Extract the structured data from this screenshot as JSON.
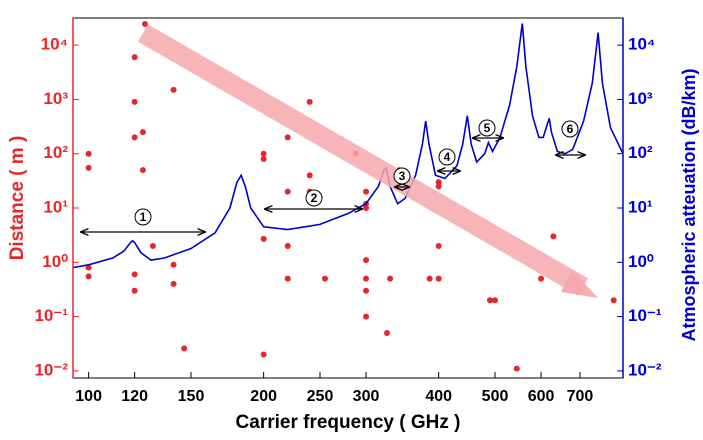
{
  "chart_data": {
    "type": "scatter",
    "xlabel": "Carrier frequency ( GHz )",
    "ylabel": "Distance ( m )",
    "y2label": "Atmospheric atteuation (dB/km)",
    "xscale": "log",
    "yscale": "log",
    "y2scale": "log",
    "xlim": [
      94,
      830
    ],
    "ylim": [
      0.0074,
      31600
    ],
    "y2lim": [
      0.0074,
      31600
    ],
    "xticks": [
      100,
      120,
      150,
      200,
      250,
      300,
      400,
      500,
      600,
      700
    ],
    "yticks": [
      {
        "value": 0.01,
        "label": "10⁻²"
      },
      {
        "value": 0.1,
        "label": "10⁻¹"
      },
      {
        "value": 1,
        "label": "10⁰"
      },
      {
        "value": 10,
        "label": "10¹"
      },
      {
        "value": 100,
        "label": "10²"
      },
      {
        "value": 1000,
        "label": "10³"
      },
      {
        "value": 10000,
        "label": "10⁴"
      }
    ],
    "y2ticks": [
      {
        "value": 0.01,
        "label": "10⁻²"
      },
      {
        "value": 0.1,
        "label": "10⁻¹"
      },
      {
        "value": 1,
        "label": "10⁰"
      },
      {
        "value": 10,
        "label": "10¹"
      },
      {
        "value": 100,
        "label": "10²"
      },
      {
        "value": 1000,
        "label": "10³"
      },
      {
        "value": 10000,
        "label": "10⁴"
      }
    ],
    "ycolor": "#e8262a",
    "y2color": "#0000cc",
    "annotations": [
      "1",
      "2",
      "3",
      "4",
      "5",
      "6"
    ],
    "series": [
      {
        "type": "scatter",
        "color": "#e8262a",
        "x": [
          100,
          100,
          100,
          100,
          120,
          120,
          120,
          120,
          120,
          124,
          124,
          129,
          125,
          140,
          140,
          140,
          146,
          200,
          200,
          200,
          200,
          220,
          220,
          220,
          220,
          240,
          240,
          240,
          255,
          288,
          300,
          300,
          300,
          300,
          300,
          300,
          300,
          326,
          330,
          342,
          386,
          400,
          400,
          400,
          400,
          490,
          500,
          545,
          600,
          630,
          800
        ],
        "values": [
          100,
          55,
          0.8,
          0.55,
          6000,
          900,
          200,
          0.6,
          0.3,
          250,
          50,
          2,
          24500,
          1500,
          0.9,
          0.4,
          0.026,
          100,
          80,
          2.7,
          0.02,
          200,
          20,
          2,
          0.5,
          900,
          40,
          20,
          0.5,
          100,
          20,
          12,
          10,
          1.1,
          0.5,
          0.3,
          0.1,
          0.05,
          0.5,
          50,
          0.5,
          30,
          25,
          2,
          0.5,
          0.2,
          0.2,
          0.011,
          0.5,
          3,
          0.2
        ]
      },
      {
        "type": "line",
        "axis": "y2",
        "color": "#0000cc",
        "x": [
          94,
          100,
          110,
          115,
          118,
          119,
          120,
          123,
          128,
          135,
          150,
          165,
          175,
          180,
          183,
          186,
          190,
          200,
          220,
          250,
          280,
          300,
          315,
          322,
          325,
          330,
          340,
          350,
          365,
          375,
          380,
          385,
          395,
          410,
          430,
          440,
          448,
          455,
          465,
          480,
          487,
          495,
          510,
          530,
          545,
          557,
          565,
          580,
          595,
          605,
          615,
          620,
          625,
          640,
          660,
          680,
          710,
          735,
          752,
          765,
          790,
          830
        ],
        "values": [
          0.8,
          0.9,
          1.2,
          1.6,
          2.3,
          2.5,
          2.3,
          1.5,
          1.1,
          1.2,
          1.8,
          3.5,
          10,
          30,
          40,
          25,
          10,
          4.5,
          4,
          5,
          8,
          12,
          25,
          50,
          55,
          25,
          12,
          15,
          40,
          150,
          400,
          150,
          40,
          35,
          60,
          150,
          500,
          150,
          70,
          100,
          160,
          110,
          200,
          800,
          4000,
          25000,
          4000,
          500,
          200,
          200,
          350,
          450,
          250,
          110,
          100,
          120,
          400,
          2000,
          17000,
          2000,
          300,
          100
        ]
      }
    ]
  }
}
